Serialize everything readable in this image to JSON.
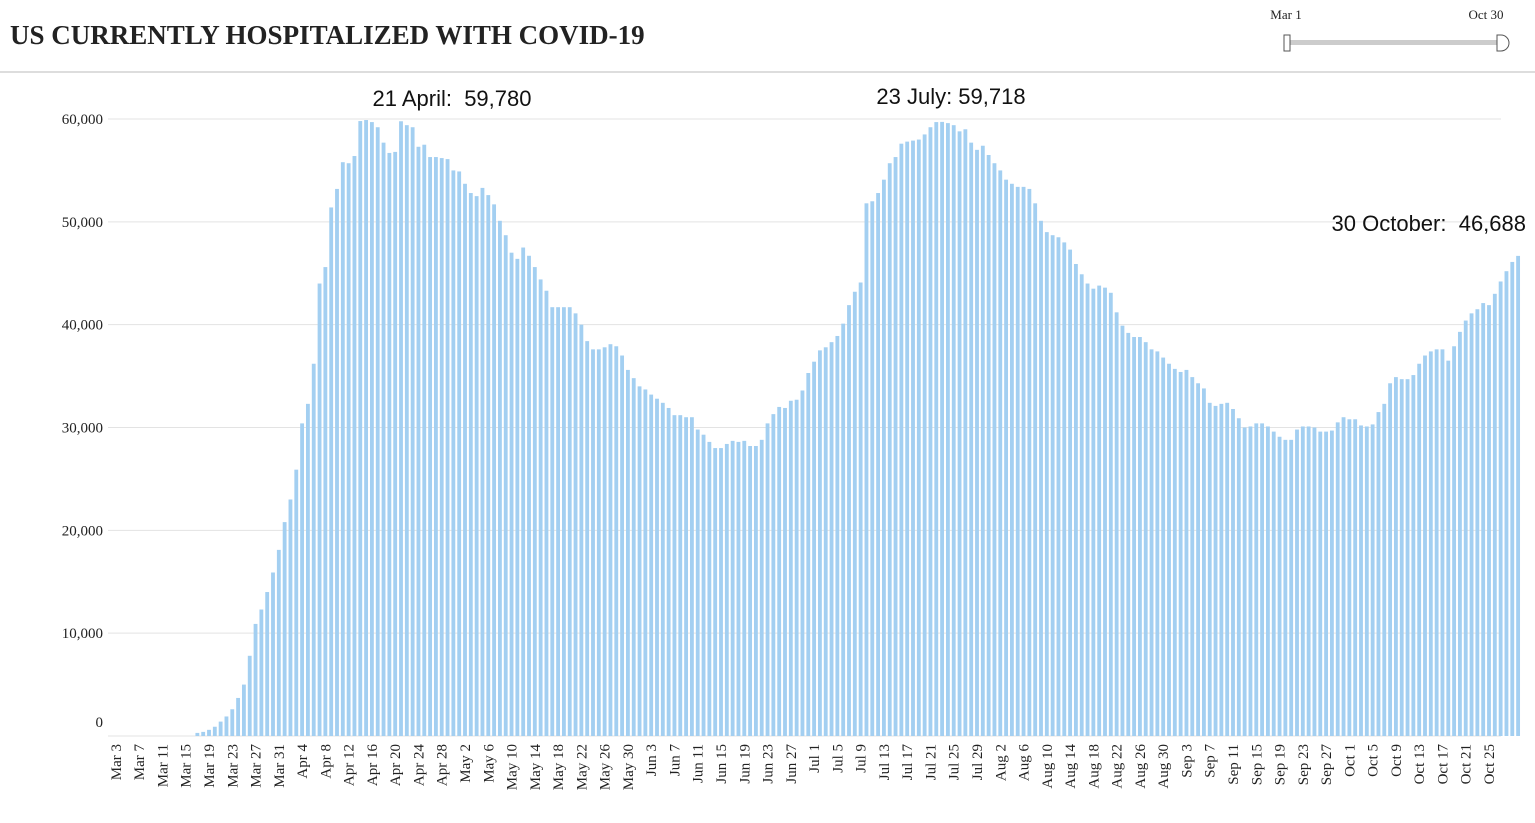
{
  "chart_data": {
    "type": "bar",
    "title": "US CURRENTLY HOSPITALIZED WITH COVID-19",
    "slider": {
      "start": "Mar 1",
      "end": "Oct 30"
    },
    "annotations": [
      "21 April:  59,780",
      "23 July: 59,718",
      "30 October:  46,688"
    ],
    "color": "#a3cff1",
    "grid": true,
    "ylim": [
      0,
      60000
    ],
    "yticks": [
      0,
      {
        "value": 10000,
        "label": "10,000"
      },
      {
        "value": 20000,
        "label": "20,000"
      },
      {
        "value": 30000,
        "label": "30,000"
      },
      {
        "value": 40000,
        "label": "40,000"
      },
      {
        "value": 50000,
        "label": "50,000"
      },
      {
        "value": 60000,
        "label": "60,000"
      }
    ],
    "categories": [
      "Mar 3",
      null,
      null,
      null,
      "Mar 7",
      null,
      null,
      null,
      "Mar 11",
      null,
      null,
      null,
      "Mar 15",
      null,
      null,
      null,
      "Mar 19",
      null,
      null,
      null,
      "Mar 23",
      null,
      null,
      null,
      "Mar 27",
      null,
      null,
      null,
      "Mar 31",
      null,
      null,
      null,
      "Apr 4",
      null,
      null,
      null,
      "Apr 8",
      null,
      null,
      null,
      "Apr 12",
      null,
      null,
      null,
      "Apr 16",
      null,
      null,
      null,
      "Apr 20",
      null,
      null,
      null,
      "Apr 24",
      null,
      null,
      null,
      "Apr 28",
      null,
      null,
      null,
      "May 2",
      null,
      null,
      null,
      "May 6",
      null,
      null,
      null,
      "May 10",
      null,
      null,
      null,
      "May 14",
      null,
      null,
      null,
      "May 18",
      null,
      null,
      null,
      "May 22",
      null,
      null,
      null,
      "May 26",
      null,
      null,
      null,
      "May 30",
      null,
      null,
      null,
      "Jun 3",
      null,
      null,
      null,
      "Jun 7",
      null,
      null,
      null,
      "Jun 11",
      null,
      null,
      null,
      "Jun 15",
      null,
      null,
      null,
      "Jun 19",
      null,
      null,
      null,
      "Jun 23",
      null,
      null,
      null,
      "Jun 27",
      null,
      null,
      null,
      "Jul 1",
      null,
      null,
      null,
      "Jul 5",
      null,
      null,
      null,
      "Jul 9",
      null,
      null,
      null,
      "Jul 13",
      null,
      null,
      null,
      "Jul 17",
      null,
      null,
      null,
      "Jul 21",
      null,
      null,
      null,
      "Jul 25",
      null,
      null,
      null,
      "Jul 29",
      null,
      null,
      null,
      "Aug 2",
      null,
      null,
      null,
      "Aug 6",
      null,
      null,
      null,
      "Aug 10",
      null,
      null,
      null,
      "Aug 14",
      null,
      null,
      null,
      "Aug 18",
      null,
      null,
      null,
      "Aug 22",
      null,
      null,
      null,
      "Aug 26",
      null,
      null,
      null,
      "Aug 30",
      null,
      null,
      null,
      "Sep 3",
      null,
      null,
      null,
      "Sep 7",
      null,
      null,
      null,
      "Sep 11",
      null,
      null,
      null,
      "Sep 15",
      null,
      null,
      null,
      "Sep 19",
      null,
      null,
      null,
      "Sep 23",
      null,
      null,
      null,
      "Sep 27",
      null,
      null,
      null,
      "Oct 1",
      null,
      null,
      null,
      "Oct 5",
      null,
      null,
      null,
      "Oct 9",
      null,
      null,
      null,
      "Oct 13",
      null,
      null,
      null,
      "Oct 17",
      null,
      null,
      null,
      "Oct 21",
      null,
      null,
      null,
      "Oct 25",
      null,
      null,
      null,
      null,
      null
    ],
    "values": [
      0,
      0,
      0,
      0,
      0,
      0,
      0,
      0,
      0,
      0,
      0,
      0,
      0,
      0,
      300,
      400,
      600,
      900,
      1400,
      1900,
      2600,
      3700,
      5000,
      7800,
      10900,
      12300,
      14000,
      15900,
      18100,
      20800,
      23000,
      25900,
      30400,
      32300,
      36200,
      44000,
      45600,
      51400,
      53200,
      55800,
      55700,
      56400,
      59800,
      59900,
      59700,
      59200,
      57700,
      56700,
      56800,
      59780,
      59400,
      59200,
      57300,
      57500,
      56300,
      56300,
      56200,
      56100,
      55000,
      54900,
      53700,
      52800,
      52500,
      53300,
      52600,
      51700,
      50100,
      48700,
      47000,
      46400,
      47500,
      46700,
      45600,
      44400,
      43300,
      41700,
      41700,
      41700,
      41700,
      41100,
      40000,
      38400,
      37600,
      37600,
      37800,
      38100,
      37900,
      37000,
      35600,
      34800,
      34000,
      33700,
      33200,
      32800,
      32400,
      31900,
      31200,
      31200,
      31000,
      31000,
      29800,
      29300,
      28600,
      28000,
      28000,
      28400,
      28700,
      28600,
      28700,
      28200,
      28200,
      28800,
      30400,
      31300,
      32000,
      31900,
      32600,
      32700,
      33600,
      35300,
      36400,
      37500,
      37800,
      38300,
      38900,
      40100,
      41900,
      43200,
      44100,
      51800,
      52000,
      52800,
      54100,
      55700,
      56300,
      57600,
      57800,
      57900,
      58000,
      58500,
      59200,
      59700,
      59718,
      59600,
      59400,
      58800,
      59000,
      57700,
      57000,
      57400,
      56500,
      55700,
      55000,
      54100,
      53700,
      53400,
      53400,
      53200,
      51800,
      50100,
      49000,
      48700,
      48500,
      48000,
      47300,
      45900,
      44900,
      44000,
      43500,
      43800,
      43600,
      43100,
      41200,
      39900,
      39200,
      38800,
      38800,
      38300,
      37600,
      37400,
      36800,
      36200,
      35700,
      35400,
      35600,
      34900,
      34300,
      33800,
      32400,
      32100,
      32300,
      32400,
      31800,
      30900,
      30000,
      30100,
      30400,
      30400,
      30100,
      29600,
      29100,
      28800,
      28800,
      29800,
      30100,
      30100,
      30000,
      29600,
      29600,
      29700,
      30500,
      31000,
      30800,
      30800,
      30200,
      30100,
      30300,
      31500,
      32300,
      34300,
      34900,
      34700,
      34700,
      35100,
      36200,
      37000,
      37400,
      37600,
      37600,
      36500,
      37900,
      39300,
      40400,
      41100,
      41500,
      42100,
      41900,
      43000,
      44200,
      45200,
      46100,
      46688
    ]
  }
}
